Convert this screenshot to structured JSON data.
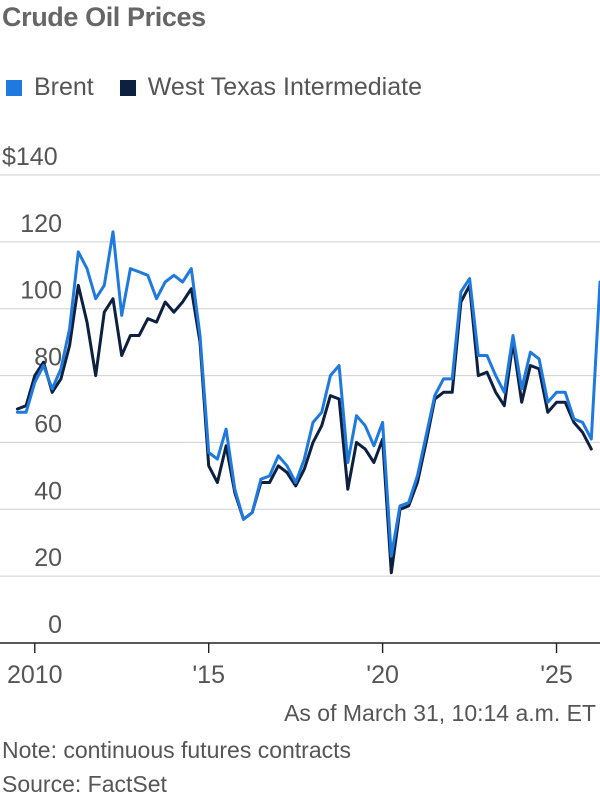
{
  "title": "Crude Oil Prices",
  "legend": [
    {
      "name": "Brent",
      "color": "#1f7ae0"
    },
    {
      "name": "West Texas Intermediate",
      "color": "#0d2040"
    }
  ],
  "footer": {
    "as_of": "As of March 31, 10:14 a.m. ET",
    "note": "Note: continuous futures contracts",
    "source": "Source: FactSet"
  },
  "chart_data": {
    "type": "line",
    "title": "Crude Oil Prices",
    "xlabel": "",
    "ylabel": "",
    "ylim": [
      0,
      140
    ],
    "xlim": [
      2009.0,
      2026.25
    ],
    "yticks": [
      0,
      20,
      40,
      60,
      80,
      100,
      120,
      140
    ],
    "ytick_labels": [
      "0",
      "20",
      "40",
      "60",
      "80",
      "100",
      "120",
      "$140"
    ],
    "xticks": [
      2010,
      2015,
      2020,
      2025
    ],
    "xtick_labels": [
      "2010",
      "'15",
      "'20",
      "'25"
    ],
    "grid": "horizontal",
    "legend_position": "top-left",
    "series": [
      {
        "name": "Brent",
        "color": "#1f7ae0",
        "x": [
          2009.5,
          2009.75,
          2010.0,
          2010.25,
          2010.5,
          2010.75,
          2011.0,
          2011.25,
          2011.5,
          2011.75,
          2012.0,
          2012.25,
          2012.5,
          2012.75,
          2013.0,
          2013.25,
          2013.5,
          2013.75,
          2014.0,
          2014.25,
          2014.5,
          2014.75,
          2015.0,
          2015.25,
          2015.5,
          2015.75,
          2016.0,
          2016.25,
          2016.5,
          2016.75,
          2017.0,
          2017.25,
          2017.5,
          2017.75,
          2018.0,
          2018.25,
          2018.5,
          2018.75,
          2019.0,
          2019.25,
          2019.5,
          2019.75,
          2020.0,
          2020.25,
          2020.5,
          2020.75,
          2021.0,
          2021.25,
          2021.5,
          2021.75,
          2022.0,
          2022.25,
          2022.5,
          2022.75,
          2023.0,
          2023.25,
          2023.5,
          2023.75,
          2024.0,
          2024.25,
          2024.5,
          2024.75,
          2025.0,
          2025.25,
          2025.5,
          2025.75,
          2026.0,
          2026.25
        ],
        "values": [
          69,
          69,
          78,
          83,
          76,
          82,
          94,
          117,
          112,
          103,
          107,
          123,
          98,
          112,
          111,
          110,
          103,
          108,
          110,
          108,
          112,
          92,
          57,
          55,
          64,
          46,
          37,
          39,
          49,
          50,
          56,
          53,
          48,
          55,
          66,
          69,
          80,
          83,
          54,
          68,
          65,
          59,
          66,
          26,
          41,
          42,
          50,
          62,
          74,
          79,
          79,
          105,
          109,
          86,
          86,
          80,
          75,
          92,
          76,
          87,
          85,
          72,
          75,
          75,
          67,
          66,
          61,
          108
        ]
      },
      {
        "name": "West Texas Intermediate",
        "color": "#0d2040",
        "x": [
          2009.5,
          2009.75,
          2010.0,
          2010.25,
          2010.5,
          2010.75,
          2011.0,
          2011.25,
          2011.5,
          2011.75,
          2012.0,
          2012.25,
          2012.5,
          2012.75,
          2013.0,
          2013.25,
          2013.5,
          2013.75,
          2014.0,
          2014.25,
          2014.5,
          2014.75,
          2015.0,
          2015.25,
          2015.5,
          2015.75,
          2016.0,
          2016.25,
          2016.5,
          2016.75,
          2017.0,
          2017.25,
          2017.5,
          2017.75,
          2018.0,
          2018.25,
          2018.5,
          2018.75,
          2019.0,
          2019.25,
          2019.5,
          2019.75,
          2020.0,
          2020.25,
          2020.5,
          2020.75,
          2021.0,
          2021.25,
          2021.5,
          2021.75,
          2022.0,
          2022.25,
          2022.5,
          2022.75,
          2023.0,
          2023.25,
          2023.5,
          2023.75,
          2024.0,
          2024.25,
          2024.5,
          2024.75,
          2025.0,
          2025.25,
          2025.5,
          2025.75,
          2026.0
        ],
        "values": [
          70,
          71,
          80,
          84,
          75,
          79,
          89,
          107,
          96,
          80,
          99,
          103,
          86,
          92,
          92,
          97,
          96,
          102,
          99,
          102,
          106,
          90,
          53,
          48,
          59,
          45,
          37,
          39,
          48,
          48,
          53,
          51,
          47,
          52,
          60,
          65,
          74,
          73,
          46,
          60,
          58,
          54,
          61,
          21,
          40,
          41,
          48,
          60,
          73,
          75,
          75,
          102,
          107,
          80,
          81,
          75,
          71,
          90,
          72,
          83,
          82,
          69,
          72,
          72,
          66,
          63,
          58
        ]
      }
    ]
  }
}
